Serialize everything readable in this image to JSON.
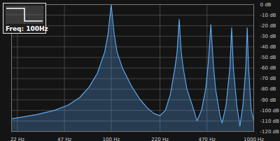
{
  "chart_data": {
    "type": "area",
    "annotation": "Freq: 100Hz",
    "log": "x",
    "grid": true,
    "color": "#5aa6ee",
    "x": [
      20,
      30,
      40,
      50,
      60,
      70,
      80,
      90,
      95,
      100,
      105,
      110,
      120,
      140,
      160,
      180,
      200,
      220,
      240,
      260,
      280,
      290,
      300,
      310,
      320,
      340,
      370,
      400,
      430,
      460,
      480,
      500,
      520,
      540,
      580,
      600,
      640,
      680,
      700,
      720,
      760,
      800,
      840,
      880,
      900,
      920,
      960,
      1000
    ],
    "values": [
      -108,
      -104,
      -100,
      -95,
      -88,
      -78,
      -65,
      -45,
      -28,
      0,
      -28,
      -45,
      -60,
      -78,
      -90,
      -98,
      -103,
      -105,
      -100,
      -85,
      -60,
      -45,
      -14,
      -45,
      -60,
      -80,
      -95,
      -110,
      -100,
      -80,
      -55,
      -19,
      -55,
      -80,
      -105,
      -112,
      -95,
      -60,
      -22,
      -60,
      -95,
      -115,
      -95,
      -60,
      -22,
      -60,
      -100,
      -110
    ],
    "xlim": [
      20,
      1000
    ],
    "xticks": [
      {
        "value": 22,
        "label": "22 Hz"
      },
      {
        "value": 47,
        "label": "47 Hz"
      },
      {
        "value": 100,
        "label": "100 Hz"
      },
      {
        "value": 220,
        "label": "220 Hz"
      },
      {
        "value": 470,
        "label": "470 Hz"
      },
      {
        "value": 1000,
        "label": "1000 Hz"
      }
    ],
    "ylim": [
      -120,
      0
    ],
    "yticks": [
      {
        "value": 0,
        "label": "0 dB"
      },
      {
        "value": -10,
        "label": "-10 dB"
      },
      {
        "value": -20,
        "label": "-20 dB"
      },
      {
        "value": -30,
        "label": "-30 dB"
      },
      {
        "value": -40,
        "label": "-40 dB"
      },
      {
        "value": -50,
        "label": "-50 dB"
      },
      {
        "value": -60,
        "label": "-60 dB"
      },
      {
        "value": -70,
        "label": "-70 dB"
      },
      {
        "value": -80,
        "label": "-80 dB"
      },
      {
        "value": -90,
        "label": "-90 dB"
      },
      {
        "value": -100,
        "label": "-100 dB"
      },
      {
        "value": -110,
        "label": "-110 dB"
      },
      {
        "value": -120,
        "label": "-120 dB"
      }
    ]
  }
}
